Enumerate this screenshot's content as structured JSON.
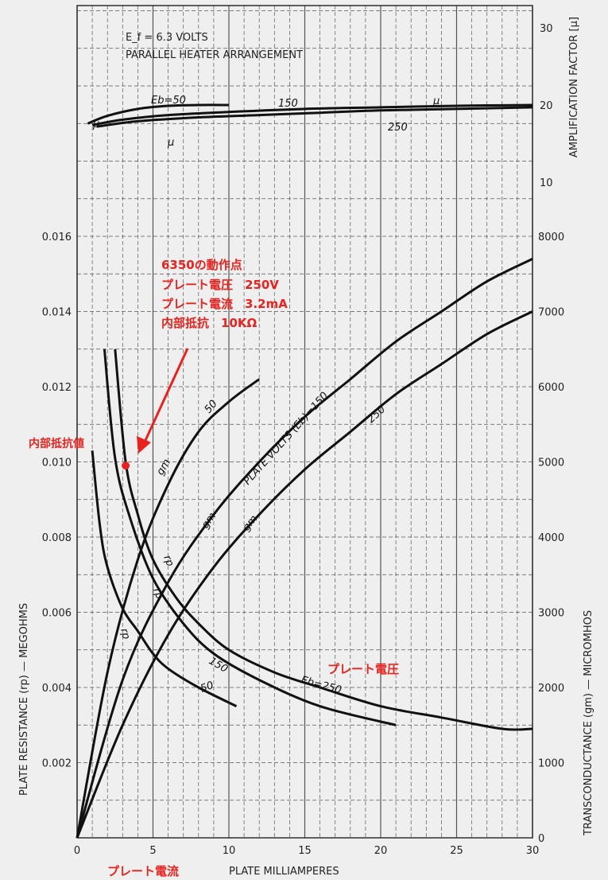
{
  "chart_data": [
    {
      "type": "line",
      "title": "",
      "annotations": [
        "E_f = 6.3 VOLTS",
        "PARALLEL HEATER ARRANGEMENT"
      ],
      "xlabel": "PLATE MILLIAMPERES",
      "ylabel": "AMPLIFICATION FACTOR [μ]",
      "xlim": [
        0,
        30
      ],
      "ylim": [
        10,
        30
      ],
      "x_ticks": [
        "0",
        "5",
        "10",
        "15",
        "20",
        "25",
        "30"
      ],
      "y_ticks": [
        "10",
        "20",
        "30"
      ],
      "series": [
        {
          "name": "50",
          "label": "Eb=50",
          "x": [
            0.7,
            2,
            4,
            6,
            8,
            10
          ],
          "y": [
            17.6,
            18.6,
            19.5,
            19.9,
            20.0,
            20.0
          ]
        },
        {
          "name": "150",
          "label": "150",
          "x": [
            1,
            3,
            6,
            10,
            15,
            20,
            25,
            30
          ],
          "y": [
            17.4,
            18.1,
            18.7,
            19.1,
            19.5,
            19.7,
            19.9,
            20.0
          ]
        },
        {
          "name": "250",
          "label": "250",
          "x": [
            1.3,
            4,
            8,
            12,
            16,
            20,
            25,
            30
          ],
          "y": [
            17.2,
            17.9,
            18.4,
            18.7,
            19.0,
            19.3,
            19.5,
            19.7
          ]
        }
      ],
      "curve_labels": [
        "μ",
        "μ",
        "μ"
      ]
    },
    {
      "type": "line",
      "title": "",
      "xlabel": "PLATE MILLIAMPERES",
      "ylabel_left": "PLATE RESISTANCE (rp) — MEGOHMS",
      "ylabel_right": "TRANSCONDUCTANCE (gm) — MICROMHOS",
      "xlim": [
        0,
        30
      ],
      "ylim_left": [
        0,
        0.016
      ],
      "ylim_right": [
        0,
        8000
      ],
      "x_ticks": [
        "0",
        "5",
        "10",
        "15",
        "20",
        "25",
        "30"
      ],
      "y_ticks_left": [
        "0.002",
        "0.004",
        "0.006",
        "0.008",
        "0.010",
        "0.012",
        "0.014",
        "0.016"
      ],
      "y_ticks_right": [
        "0",
        "1000",
        "2000",
        "3000",
        "4000",
        "5000",
        "6000",
        "7000",
        "8000"
      ],
      "gm_series": [
        {
          "name": "50",
          "x": [
            0,
            2,
            4,
            6,
            8,
            10,
            12
          ],
          "y": [
            0,
            2200,
            3700,
            4700,
            5400,
            5800,
            6100
          ]
        },
        {
          "name": "150",
          "x": [
            0,
            3,
            6,
            9,
            12,
            15,
            18,
            21,
            24,
            27,
            30
          ],
          "y": [
            0,
            2100,
            3400,
            4300,
            5000,
            5600,
            6100,
            6600,
            7000,
            7400,
            7700
          ]
        },
        {
          "name": "250",
          "x": [
            0,
            3,
            6,
            9,
            12,
            15,
            18,
            21,
            24,
            27,
            30
          ],
          "y": [
            0,
            1500,
            2700,
            3600,
            4300,
            4900,
            5400,
            5900,
            6300,
            6700,
            7000
          ]
        }
      ],
      "rp_series": [
        {
          "name": "50",
          "x": [
            1,
            1.5,
            2,
            3,
            4,
            5,
            6,
            8,
            10.5
          ],
          "y": [
            0.0103,
            0.0083,
            0.0072,
            0.0061,
            0.0055,
            0.0049,
            0.0045,
            0.004,
            0.0035
          ]
        },
        {
          "name": "150",
          "x": [
            1.8,
            2.5,
            3.5,
            5,
            7,
            9,
            12,
            16,
            21
          ],
          "y": [
            0.013,
            0.0101,
            0.0085,
            0.0069,
            0.0057,
            0.0049,
            0.0042,
            0.0035,
            0.003
          ]
        },
        {
          "name": "250",
          "x": [
            2.5,
            3.2,
            4,
            5,
            6.5,
            8,
            10,
            13,
            16,
            20,
            24,
            28,
            30
          ],
          "y": [
            0.013,
            0.01,
            0.0086,
            0.0074,
            0.0064,
            0.0057,
            0.005,
            0.0044,
            0.004,
            0.0035,
            0.0032,
            0.0029,
            0.0029
          ]
        }
      ],
      "curve_labels": {
        "gm_50": "50",
        "gm_150": "PLATE VOLTS (Eb)=150",
        "gm_250": "250",
        "gm": "gm",
        "rp": "rp",
        "rp_150": "150",
        "rp_50": "50",
        "rp_250": "Eb=250"
      },
      "operating_point": {
        "x": 3.2,
        "y": 0.0099
      }
    }
  ],
  "annotations_jp": {
    "operating_title": "6350の動作点",
    "plate_voltage": "プレート電圧　250V",
    "plate_current": "プレート電流　3.2mA",
    "internal_resistance": "内部抵抗　10KΩ",
    "point_label": "内部抵抗値",
    "voltage_label": "プレート電圧",
    "current_label": "プレート電流"
  },
  "colors": {
    "ink": "#111111",
    "grid": "#555555",
    "accent": "#e8231f",
    "paper": "#efefef"
  }
}
